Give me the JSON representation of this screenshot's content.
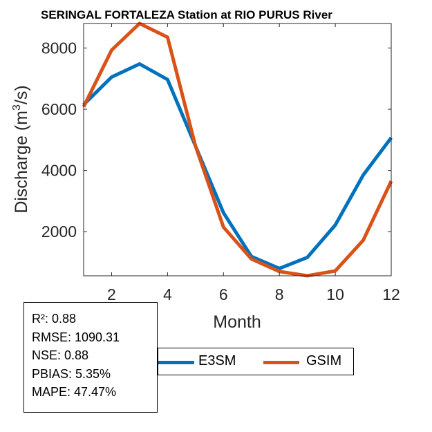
{
  "chart_data": {
    "type": "line",
    "title": "SERINGAL FORTALEZA  Station at  RIO PURUS  River",
    "xlabel": "Month",
    "ylabel_main": "Discharge (m",
    "ylabel_sup": "3",
    "ylabel_end": "/s)",
    "x": [
      1,
      2,
      3,
      4,
      5,
      6,
      7,
      8,
      9,
      10,
      11,
      12
    ],
    "xlim": [
      1,
      12
    ],
    "ylim": [
      560,
      8800
    ],
    "xticks": [
      2,
      4,
      6,
      8,
      10,
      12
    ],
    "yticks": [
      2000,
      4000,
      6000,
      8000
    ],
    "grid": false,
    "series": [
      {
        "name": "E3SM",
        "color": "#0072BD",
        "values": [
          6150,
          7050,
          7480,
          6970,
          4800,
          2620,
          1190,
          800,
          1160,
          2220,
          3850,
          5070
        ]
      },
      {
        "name": "GSIM",
        "color": "#D95319",
        "values": [
          6080,
          7930,
          8800,
          8350,
          4800,
          2150,
          1110,
          700,
          560,
          720,
          1720,
          3650
        ]
      }
    ]
  },
  "stats": {
    "r2": "R²: 0.88",
    "rmse": "RMSE: 1090.31",
    "nse": "NSE: 0.88",
    "pbias": "PBIAS: 5.35%",
    "mape": "MAPE: 47.47%"
  },
  "legend": {
    "entries": [
      {
        "label": "E3SM",
        "color": "#0072BD"
      },
      {
        "label": "GSIM",
        "color": "#D95319"
      }
    ]
  }
}
